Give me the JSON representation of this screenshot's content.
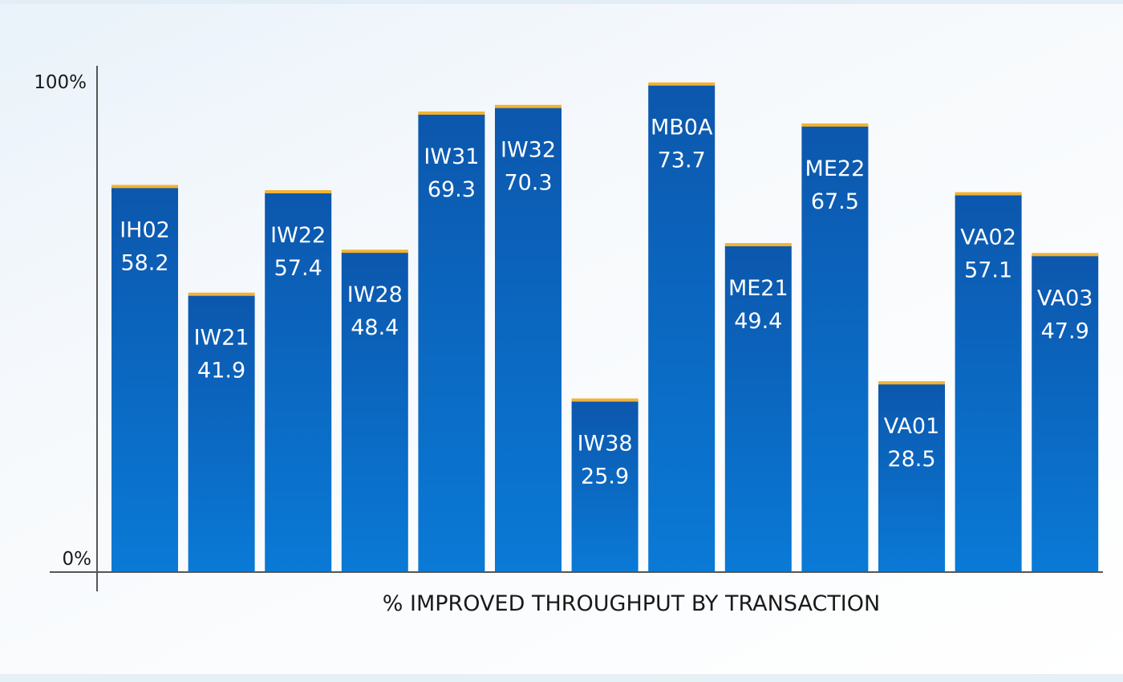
{
  "chart_data": {
    "type": "bar",
    "categories": [
      "IH02",
      "IW21",
      "IW22",
      "IW28",
      "IW31",
      "IW32",
      "IW38",
      "MB0A",
      "ME21",
      "ME22",
      "VA01",
      "VA02",
      "VA03"
    ],
    "values": [
      58.2,
      41.9,
      57.4,
      48.4,
      69.3,
      70.3,
      25.9,
      73.7,
      49.4,
      67.5,
      28.5,
      57.1,
      47.9
    ],
    "data_labels": [
      "58.2",
      "41.9",
      "57.4",
      "48.4",
      "69.3",
      "70.3",
      "25.9",
      "73.7",
      "49.4",
      "67.5",
      "28.5",
      "57.1",
      "47.9"
    ],
    "title": "",
    "xlabel": "% IMPROVED THROUGHPUT BY TRANSACTION",
    "ylabel": "",
    "ylim": [
      0,
      100
    ],
    "y_ticks": [
      "0%",
      "100%"
    ],
    "grid": false,
    "legend": "none",
    "colors": {
      "bar_top": "#0c57ad",
      "bar_bottom": "#0a7ad6",
      "cap": "#f2b233",
      "axis": "#555555"
    }
  }
}
